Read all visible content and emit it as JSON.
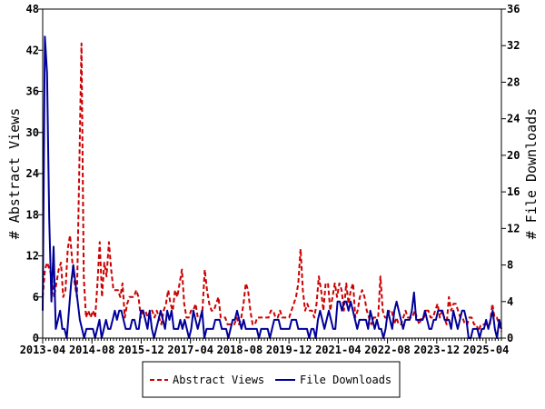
{
  "chart_data": {
    "type": "line",
    "title": "",
    "x_tick_labels": [
      "2013-04",
      "2014-08",
      "2015-12",
      "2017-04",
      "2018-08",
      "2019-12",
      "2021-04",
      "2022-08",
      "2023-12",
      "2025-04"
    ],
    "x_range": [
      "2013-04",
      "2025-09"
    ],
    "left_axis": {
      "label": "# Abstract Views",
      "ylim": [
        0,
        48
      ],
      "ticks": [
        0,
        6,
        12,
        18,
        24,
        30,
        36,
        42,
        48
      ]
    },
    "right_axis": {
      "label": "# File Downloads",
      "ylim": [
        0,
        36
      ],
      "ticks": [
        0,
        4,
        8,
        12,
        16,
        20,
        24,
        28,
        32,
        36
      ]
    },
    "legend": {
      "placement": "bottom-center"
    },
    "grid": false,
    "series": [
      {
        "name": "Abstract Views",
        "axis": "left",
        "color": "#cc0000",
        "dash": "dashed",
        "values": [
          6,
          10,
          11,
          10,
          9,
          6,
          8,
          10,
          11,
          6,
          7,
          13,
          15,
          11,
          8,
          6,
          24,
          43,
          9,
          3,
          4,
          3,
          4,
          3,
          8,
          14,
          6,
          11,
          9,
          14,
          10,
          7,
          7,
          7,
          6,
          8,
          3,
          5,
          6,
          6,
          6,
          7,
          6,
          3,
          4,
          4,
          3,
          4,
          4,
          3,
          4,
          3,
          2,
          4,
          5,
          7,
          5,
          4,
          7,
          6,
          8,
          10,
          5,
          3,
          3,
          4,
          4,
          5,
          3,
          3,
          4,
          10,
          7,
          5,
          4,
          4,
          5,
          6,
          3,
          3,
          3,
          2,
          2,
          2,
          2,
          3,
          2,
          3,
          5,
          8,
          7,
          4,
          2,
          2,
          3,
          3,
          3,
          3,
          3,
          3,
          4,
          4,
          3,
          3,
          4,
          3,
          3,
          3,
          3,
          4,
          5,
          6,
          8,
          13,
          7,
          4,
          5,
          4,
          4,
          3,
          5,
          9,
          7,
          4,
          8,
          8,
          4,
          6,
          8,
          6,
          8,
          7,
          4,
          8,
          5,
          7,
          8,
          3,
          4,
          6,
          7,
          6,
          4,
          3,
          2,
          3,
          3,
          3,
          9,
          4,
          3,
          3,
          4,
          4,
          2,
          3,
          2,
          2,
          3,
          4,
          3,
          3,
          3,
          4,
          3,
          2,
          3,
          3,
          4,
          4,
          3,
          3,
          4,
          5,
          3,
          4,
          3,
          2,
          6,
          4,
          5,
          5,
          4,
          3,
          3,
          2,
          2,
          3,
          3,
          2,
          2,
          1,
          2,
          2,
          2,
          2,
          2,
          5,
          3,
          3,
          2,
          1
        ]
      },
      {
        "name": "File Downloads",
        "axis": "right",
        "color": "#000099",
        "dash": "solid",
        "values": [
          3,
          33,
          29,
          13,
          4,
          10,
          1,
          2,
          3,
          1,
          1,
          0,
          3,
          6,
          8,
          6,
          4,
          2,
          1,
          0,
          1,
          1,
          1,
          1,
          0,
          1,
          2,
          0,
          1,
          2,
          1,
          1,
          2,
          3,
          2,
          3,
          3,
          2,
          1,
          1,
          1,
          2,
          2,
          1,
          1,
          3,
          3,
          2,
          1,
          3,
          1,
          0,
          1,
          2,
          3,
          2,
          1,
          3,
          2,
          3,
          1,
          1,
          1,
          2,
          1,
          2,
          1,
          0,
          1,
          3,
          2,
          1,
          2,
          3,
          0,
          1,
          1,
          1,
          1,
          2,
          2,
          2,
          1,
          1,
          1,
          0,
          1,
          2,
          2,
          3,
          2,
          1,
          2,
          1,
          1,
          1,
          1,
          1,
          1,
          0,
          1,
          1,
          1,
          1,
          0,
          1,
          2,
          2,
          2,
          1,
          1,
          1,
          1,
          1,
          2,
          2,
          2,
          1,
          1,
          1,
          1,
          1,
          0,
          1,
          1,
          0,
          2,
          3,
          2,
          1,
          2,
          3,
          2,
          1,
          1,
          4,
          4,
          3,
          4,
          4,
          3,
          4,
          3,
          2,
          1,
          2,
          2,
          2,
          2,
          1,
          3,
          2,
          1,
          2,
          1,
          1,
          0,
          1,
          3,
          2,
          1,
          3,
          4,
          3,
          2,
          1,
          2,
          2,
          2,
          3,
          5,
          2,
          2,
          2,
          2,
          3,
          2,
          1,
          1,
          2,
          2,
          3,
          3,
          3,
          2,
          2,
          2,
          1,
          3,
          2,
          1,
          2,
          3,
          3,
          2,
          0,
          0,
          1,
          1,
          1,
          0,
          1,
          1,
          2,
          1,
          2,
          3,
          1,
          0,
          2,
          1
        ]
      }
    ]
  }
}
